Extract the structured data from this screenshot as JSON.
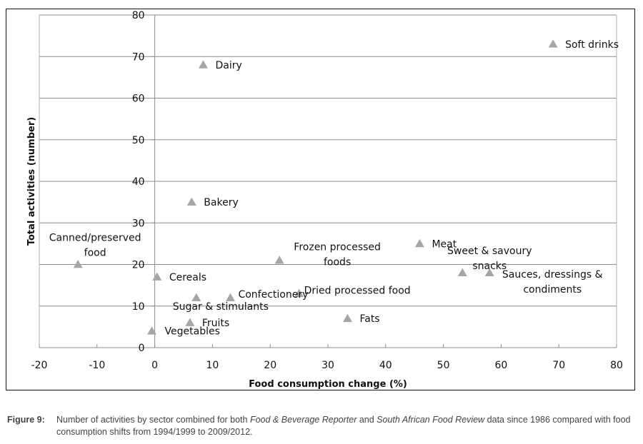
{
  "chart_data": {
    "type": "scatter",
    "title": "",
    "xlabel": "Food consumption change (%)",
    "ylabel": "Total activities (number)",
    "xlim": [
      -20,
      80
    ],
    "ylim": [
      0,
      80
    ],
    "xticks": [
      -20,
      -10,
      0,
      10,
      20,
      30,
      40,
      50,
      60,
      70,
      80
    ],
    "yticks": [
      0,
      10,
      20,
      30,
      40,
      50,
      60,
      70,
      80
    ],
    "grid": "horizontal",
    "marker": "triangle",
    "marker_color": "#a6a6a6",
    "points": [
      {
        "label": "Soft drinks",
        "x": 69,
        "y": 73
      },
      {
        "label": "Dairy",
        "x": 8.4,
        "y": 68
      },
      {
        "label": "Bakery",
        "x": 6.4,
        "y": 35
      },
      {
        "label": "Canned/preserved food",
        "x": -13.3,
        "y": 20
      },
      {
        "label": "Cereals",
        "x": 0.4,
        "y": 17
      },
      {
        "label": "Frozen processed foods",
        "x": 21.6,
        "y": 21
      },
      {
        "label": "Meat",
        "x": 45.9,
        "y": 25
      },
      {
        "label": "Sweet & savoury snacks",
        "x": 53.3,
        "y": 18
      },
      {
        "label": "Sauces, dressings & condiments",
        "x": 58,
        "y": 18
      },
      {
        "label": "Confectionery",
        "x": 13.1,
        "y": 12
      },
      {
        "label": "Dried processed food",
        "x": 25,
        "y": 13
      },
      {
        "label": "Sugar & stimulants",
        "x": 7.2,
        "y": 12
      },
      {
        "label": "Fats",
        "x": 33.4,
        "y": 7
      },
      {
        "label": "Fruits",
        "x": 6.1,
        "y": 6
      },
      {
        "label": "Vegetables",
        "x": -0.5,
        "y": 4
      }
    ]
  },
  "caption": {
    "label": "Figure 9:",
    "text_1": "Number of activities by sector combined for both ",
    "italic_1": "Food & Beverage Reporter",
    "text_2": " and ",
    "italic_2": "South African Food Review",
    "text_3": " data since 1986 compared with food consumption shifts from 1994/1999 to 2009/2012."
  }
}
